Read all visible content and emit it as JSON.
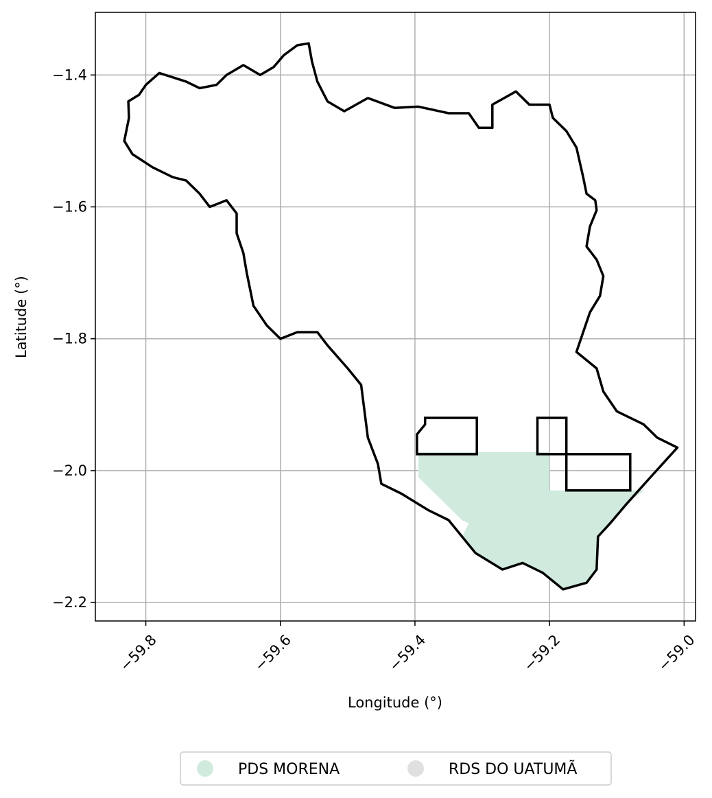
{
  "chart_data": {
    "type": "map",
    "xlabel": "Longitude (°)",
    "ylabel": "Latitude (°)",
    "xlim": [
      -59.875,
      -58.983
    ],
    "ylim": [
      -2.228,
      -1.305
    ],
    "xticks": [
      -59.8,
      -59.6,
      -59.4,
      -59.2,
      -59.0
    ],
    "xtick_labels": [
      "−59.8",
      "−59.6",
      "−59.4",
      "−59.2",
      "−59.0"
    ],
    "yticks": [
      -1.4,
      -1.6,
      -1.8,
      -2.0,
      -2.2
    ],
    "ytick_labels": [
      "−1.4",
      "−1.6",
      "−1.8",
      "−2.0",
      "−2.2"
    ],
    "grid": true,
    "legend_position": "bottom-center",
    "legend": [
      {
        "label": "PDS MORENA",
        "color": "#d0ebdd"
      },
      {
        "label": "RDS DO UATUMÃ",
        "color": "#e0e0e0"
      }
    ],
    "boundary_color": "#000000",
    "grid_color": "#b0b0b0",
    "outer_boundary": [
      [
        -59.832,
        -1.5
      ],
      [
        -59.825,
        -1.465
      ],
      [
        -59.826,
        -1.44
      ],
      [
        -59.81,
        -1.43
      ],
      [
        -59.8,
        -1.415
      ],
      [
        -59.78,
        -1.397
      ],
      [
        -59.74,
        -1.41
      ],
      [
        -59.72,
        -1.42
      ],
      [
        -59.695,
        -1.415
      ],
      [
        -59.68,
        -1.4
      ],
      [
        -59.655,
        -1.385
      ],
      [
        -59.63,
        -1.4
      ],
      [
        -59.61,
        -1.388
      ],
      [
        -59.595,
        -1.37
      ],
      [
        -59.575,
        -1.355
      ],
      [
        -59.558,
        -1.352
      ],
      [
        -59.553,
        -1.38
      ],
      [
        -59.545,
        -1.41
      ],
      [
        -59.53,
        -1.44
      ],
      [
        -59.505,
        -1.455
      ],
      [
        -59.47,
        -1.435
      ],
      [
        -59.43,
        -1.45
      ],
      [
        -59.395,
        -1.448
      ],
      [
        -59.35,
        -1.458
      ],
      [
        -59.32,
        -1.458
      ],
      [
        -59.305,
        -1.48
      ],
      [
        -59.285,
        -1.48
      ],
      [
        -59.285,
        -1.445
      ],
      [
        -59.25,
        -1.425
      ],
      [
        -59.23,
        -1.445
      ],
      [
        -59.2,
        -1.445
      ],
      [
        -59.195,
        -1.465
      ],
      [
        -59.175,
        -1.485
      ],
      [
        -59.16,
        -1.51
      ],
      [
        -59.15,
        -1.555
      ],
      [
        -59.145,
        -1.58
      ],
      [
        -59.132,
        -1.59
      ],
      [
        -59.13,
        -1.605
      ],
      [
        -59.14,
        -1.63
      ],
      [
        -59.145,
        -1.66
      ],
      [
        -59.13,
        -1.68
      ],
      [
        -59.12,
        -1.705
      ],
      [
        -59.125,
        -1.735
      ],
      [
        -59.14,
        -1.76
      ],
      [
        -59.15,
        -1.79
      ],
      [
        -59.16,
        -1.82
      ],
      [
        -59.13,
        -1.845
      ],
      [
        -59.12,
        -1.88
      ],
      [
        -59.1,
        -1.91
      ],
      [
        -59.06,
        -1.93
      ],
      [
        -59.04,
        -1.95
      ],
      [
        -59.01,
        -1.965
      ],
      [
        -59.05,
        -2.01
      ],
      [
        -59.085,
        -2.05
      ],
      [
        -59.11,
        -2.08
      ],
      [
        -59.128,
        -2.1
      ],
      [
        -59.13,
        -2.15
      ],
      [
        -59.145,
        -2.17
      ],
      [
        -59.18,
        -2.18
      ],
      [
        -59.21,
        -2.155
      ],
      [
        -59.24,
        -2.14
      ],
      [
        -59.27,
        -2.15
      ],
      [
        -59.31,
        -2.125
      ],
      [
        -59.33,
        -2.1
      ],
      [
        -59.35,
        -2.075
      ],
      [
        -59.38,
        -2.06
      ],
      [
        -59.42,
        -2.035
      ],
      [
        -59.45,
        -2.02
      ],
      [
        -59.455,
        -1.99
      ],
      [
        -59.47,
        -1.95
      ],
      [
        -59.475,
        -1.91
      ],
      [
        -59.48,
        -1.87
      ],
      [
        -59.5,
        -1.845
      ],
      [
        -59.53,
        -1.81
      ],
      [
        -59.545,
        -1.79
      ],
      [
        -59.575,
        -1.79
      ],
      [
        -59.6,
        -1.8
      ],
      [
        -59.62,
        -1.78
      ],
      [
        -59.64,
        -1.75
      ],
      [
        -59.65,
        -1.7
      ],
      [
        -59.655,
        -1.67
      ],
      [
        -59.665,
        -1.64
      ],
      [
        -59.665,
        -1.61
      ],
      [
        -59.68,
        -1.59
      ],
      [
        -59.705,
        -1.6
      ],
      [
        -59.72,
        -1.58
      ],
      [
        -59.74,
        -1.56
      ],
      [
        -59.76,
        -1.555
      ],
      [
        -59.79,
        -1.54
      ],
      [
        -59.82,
        -1.52
      ],
      [
        -59.832,
        -1.5
      ]
    ],
    "pds_morena_area": [
      [
        -59.395,
        -1.972
      ],
      [
        -59.2,
        -1.972
      ],
      [
        -59.2,
        -2.03
      ],
      [
        -59.06,
        -2.03
      ],
      [
        -59.085,
        -2.05
      ],
      [
        -59.11,
        -2.08
      ],
      [
        -59.128,
        -2.1
      ],
      [
        -59.13,
        -2.15
      ],
      [
        -59.145,
        -2.17
      ],
      [
        -59.18,
        -2.18
      ],
      [
        -59.21,
        -2.155
      ],
      [
        -59.24,
        -2.14
      ],
      [
        -59.27,
        -2.15
      ],
      [
        -59.31,
        -2.125
      ],
      [
        -59.33,
        -2.1
      ],
      [
        -59.32,
        -2.08
      ],
      [
        -59.33,
        -2.075
      ],
      [
        -59.395,
        -2.01
      ]
    ],
    "outline_parcels": [
      [
        [
          -59.385,
          -1.92
        ],
        [
          -59.308,
          -1.92
        ],
        [
          -59.308,
          -1.975
        ],
        [
          -59.397,
          -1.975
        ],
        [
          -59.397,
          -1.945
        ],
        [
          -59.385,
          -1.93
        ],
        [
          -59.385,
          -1.92
        ]
      ],
      [
        [
          -59.218,
          -1.92
        ],
        [
          -59.175,
          -1.92
        ],
        [
          -59.175,
          -1.975
        ],
        [
          -59.218,
          -1.975
        ],
        [
          -59.218,
          -1.92
        ]
      ],
      [
        [
          -59.175,
          -1.975
        ],
        [
          -59.08,
          -1.975
        ],
        [
          -59.08,
          -2.03
        ],
        [
          -59.175,
          -2.03
        ],
        [
          -59.175,
          -1.975
        ]
      ]
    ]
  }
}
